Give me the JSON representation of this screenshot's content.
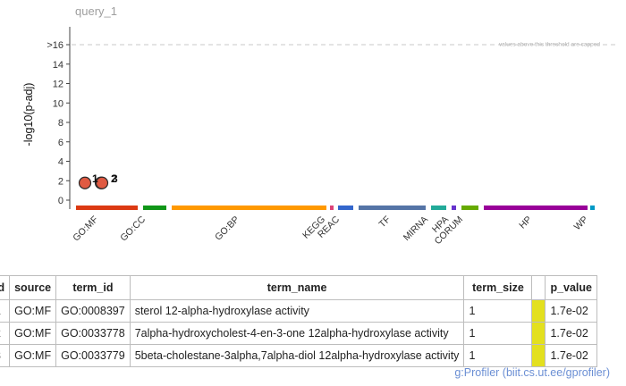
{
  "chart_data": {
    "type": "scatter",
    "title": "query_1",
    "ylabel": "-log10(p-adj)",
    "ylim": [
      0,
      16
    ],
    "y_ticks": [
      "0",
      "2",
      "4",
      "6",
      "8",
      "10",
      "12",
      "14",
      ">16"
    ],
    "threshold_label": "values above this threshold are capped",
    "sources": [
      {
        "name": "GO:MF",
        "color": "#dc3912"
      },
      {
        "name": "GO:CC",
        "color": "#109618"
      },
      {
        "name": "GO:BP",
        "color": "#ff9900"
      },
      {
        "name": "KEGG",
        "color": "#dd4477"
      },
      {
        "name": "REAC",
        "color": "#3366cc"
      },
      {
        "name": "TF",
        "color": "#5574a6"
      },
      {
        "name": "MIRNA",
        "color": "#22aa99"
      },
      {
        "name": "HPA",
        "color": "#6633cc"
      },
      {
        "name": "CORUM",
        "color": "#66aa00"
      },
      {
        "name": "HP",
        "color": "#990099"
      },
      {
        "name": "WP",
        "color": "#0099c6"
      }
    ],
    "points": [
      {
        "label": "1",
        "source": "GO:MF",
        "y": 1.77
      },
      {
        "label": "2",
        "source": "GO:MF",
        "y": 1.77
      },
      {
        "label": "3",
        "source": "GO:MF",
        "y": 1.77
      }
    ]
  },
  "table": {
    "headers": [
      "source",
      "term_id",
      "term_name",
      "term_size",
      "",
      "p_value"
    ],
    "rows": [
      {
        "source": "GO:MF",
        "term_id": "GO:0008397",
        "term_name": "sterol 12-alpha-hydroxylase activity",
        "term_size": "1",
        "p_value": "1.7e-02"
      },
      {
        "source": "GO:MF",
        "term_id": "GO:0033778",
        "term_name": "7alpha-hydroxycholest-4-en-3-one 12alpha-hydroxylase activity",
        "term_size": "1",
        "p_value": "1.7e-02"
      },
      {
        "source": "GO:MF",
        "term_id": "GO:0033779",
        "term_name": "5beta-cholestane-3alpha,7alpha-diol 12alpha-hydroxylase activity",
        "term_size": "1",
        "p_value": "1.7e-02"
      }
    ],
    "highlight_color": "#e3e01f"
  },
  "credit": "g:Profiler (biit.cs.ut.ee/gprofiler)"
}
